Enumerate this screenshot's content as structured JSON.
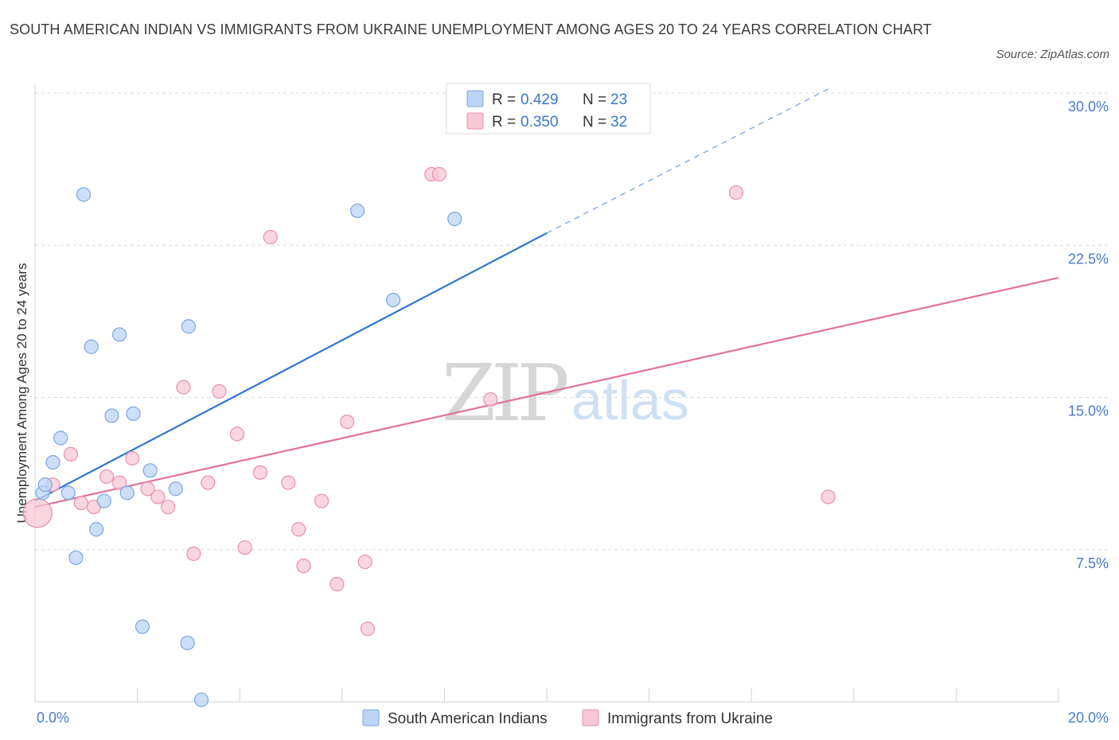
{
  "title": "SOUTH AMERICAN INDIAN VS IMMIGRANTS FROM UKRAINE UNEMPLOYMENT AMONG AGES 20 TO 24 YEARS CORRELATION CHART",
  "source": "Source: ZipAtlas.com",
  "watermark": {
    "zip": "ZIP",
    "atlas": "atlas"
  },
  "colors": {
    "blue_fill": "#bcd4f5",
    "blue_stroke": "#7aa7e0",
    "blue_line": "#2f76d0",
    "pink_fill": "#f8c8d6",
    "pink_stroke": "#e890aa",
    "pink_line": "#e0729a",
    "grid": "#d8dce3",
    "tick_text": "#4a7cc9"
  },
  "legend": {
    "rows": [
      {
        "r_label": "R =",
        "r_value": "0.429",
        "n_label": "N =",
        "n_value": "23"
      },
      {
        "r_label": "R =",
        "r_value": "0.350",
        "n_label": "N =",
        "n_value": "32"
      }
    ]
  },
  "chart_data": {
    "type": "scatter",
    "title": "SOUTH AMERICAN INDIAN VS IMMIGRANTS FROM UKRAINE UNEMPLOYMENT AMONG AGES 20 TO 24 YEARS CORRELATION CHART",
    "xlabel": "",
    "ylabel": "Unemployment Among Ages 20 to 24 years",
    "xlim": [
      0,
      20
    ],
    "ylim": [
      0,
      30
    ],
    "x_tick_labels": [
      "0.0%",
      "20.0%"
    ],
    "y_ticks": [
      7.5,
      15.0,
      22.5,
      30.0
    ],
    "y_tick_labels": [
      "7.5%",
      "15.0%",
      "22.5%",
      "30.0%"
    ],
    "series": [
      {
        "name": "South American Indians",
        "color": "blue",
        "points": [
          [
            0.15,
            10.3
          ],
          [
            0.2,
            10.7
          ],
          [
            0.35,
            11.8
          ],
          [
            0.5,
            13.0
          ],
          [
            0.65,
            10.3
          ],
          [
            0.8,
            7.1
          ],
          [
            0.95,
            25.0
          ],
          [
            1.1,
            17.5
          ],
          [
            1.2,
            8.5
          ],
          [
            1.35,
            9.9
          ],
          [
            1.5,
            14.1
          ],
          [
            1.65,
            18.1
          ],
          [
            1.8,
            10.3
          ],
          [
            1.92,
            14.2
          ],
          [
            2.1,
            3.7
          ],
          [
            2.25,
            11.4
          ],
          [
            2.75,
            10.5
          ],
          [
            2.98,
            2.9
          ],
          [
            3.0,
            18.5
          ],
          [
            3.25,
            0.1
          ],
          [
            6.3,
            24.2
          ],
          [
            7.0,
            19.8
          ],
          [
            8.2,
            23.8
          ]
        ],
        "trend": {
          "x0": 0.0,
          "y0": 9.9,
          "x1": 10.0,
          "y1": 23.1,
          "dash_x1": 15.5,
          "dash_y1": 30.2
        }
      },
      {
        "name": "Immigrants from Ukraine",
        "color": "pink",
        "points": [
          [
            0.05,
            9.3
          ],
          [
            0.35,
            10.7
          ],
          [
            0.7,
            12.2
          ],
          [
            0.9,
            9.8
          ],
          [
            1.15,
            9.6
          ],
          [
            1.4,
            11.1
          ],
          [
            1.65,
            10.8
          ],
          [
            1.9,
            12.0
          ],
          [
            2.2,
            10.5
          ],
          [
            2.4,
            10.1
          ],
          [
            2.6,
            9.6
          ],
          [
            2.9,
            15.5
          ],
          [
            3.1,
            7.3
          ],
          [
            3.38,
            10.8
          ],
          [
            3.6,
            15.3
          ],
          [
            3.95,
            13.2
          ],
          [
            4.1,
            7.6
          ],
          [
            4.4,
            11.3
          ],
          [
            4.6,
            22.9
          ],
          [
            4.95,
            10.8
          ],
          [
            5.15,
            8.5
          ],
          [
            5.25,
            6.7
          ],
          [
            5.6,
            9.9
          ],
          [
            5.9,
            5.8
          ],
          [
            6.1,
            13.8
          ],
          [
            6.45,
            6.9
          ],
          [
            6.5,
            3.6
          ],
          [
            7.75,
            26.0
          ],
          [
            7.9,
            26.0
          ],
          [
            8.9,
            14.9
          ],
          [
            13.7,
            25.1
          ],
          [
            15.5,
            10.1
          ]
        ],
        "trend": {
          "x0": 0.0,
          "y0": 9.6,
          "x1": 20.0,
          "y1": 20.9
        }
      }
    ]
  }
}
